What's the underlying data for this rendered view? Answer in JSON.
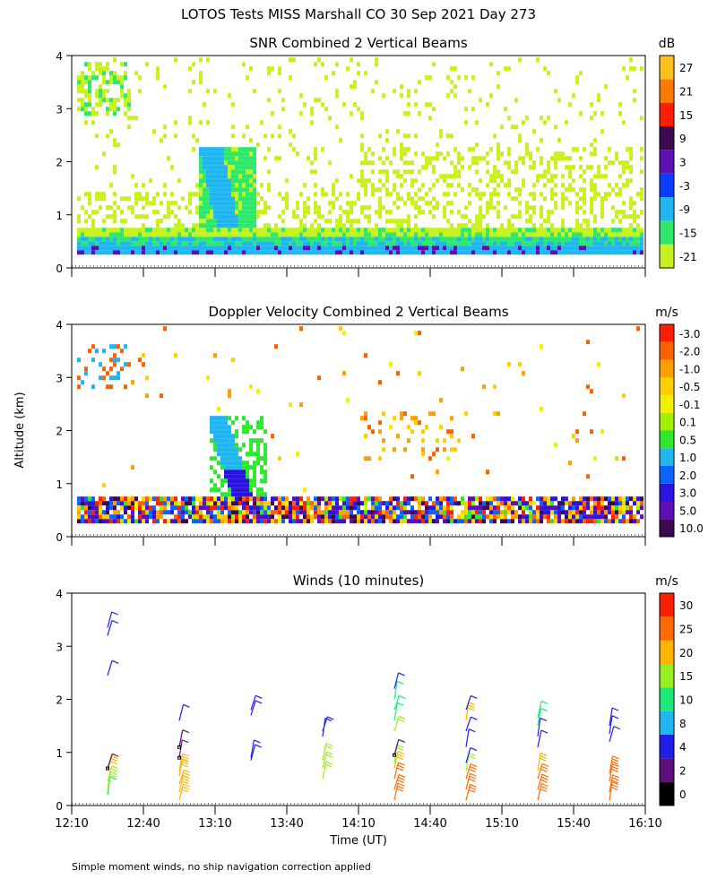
{
  "page": {
    "title": "LOTOS Tests MISS Marshall CO  30 Sep 2021 Day 273",
    "ylabel": "Altitude (km)",
    "xlabel": "Time (UT)",
    "footnote": "Simple moment winds, no ship navigation correction applied"
  },
  "chart_data": [
    {
      "type": "heatmap",
      "title": "SNR Combined 2 Vertical Beams",
      "ylim": [
        0,
        4
      ],
      "yticks": [
        "0",
        "1",
        "2",
        "3",
        "4"
      ],
      "colorbar": {
        "unit": "dB",
        "labels": [
          "-21",
          "-15",
          "-9",
          "-3",
          "3",
          "9",
          "15",
          "21",
          "27"
        ],
        "colors": [
          "#c8f21e",
          "#2ee86c",
          "#1fb6f2",
          "#0a3cff",
          "#5c0fb4",
          "#3c0a50",
          "#ff1e00",
          "#ff7a00",
          "#ffc01e"
        ]
      }
    },
    {
      "type": "heatmap",
      "title": "Doppler Velocity Combined 2 Vertical Beams",
      "ylim": [
        0,
        4
      ],
      "yticks": [
        "0",
        "1",
        "2",
        "3",
        "4"
      ],
      "colorbar": {
        "unit": "m/s",
        "labels": [
          "10.0",
          "5.0",
          "3.0",
          "2.0",
          "1.0",
          "0.5",
          "0.1",
          "-0.1",
          "-0.5",
          "-1.0",
          "-2.0",
          "-3.0"
        ],
        "colors": [
          "#3c0a50",
          "#5c0fb4",
          "#2a14e0",
          "#0a64ff",
          "#1fb6f2",
          "#2ee82e",
          "#a0f000",
          "#f0f000",
          "#ffd000",
          "#ffa000",
          "#ff6000",
          "#ff1e00"
        ]
      }
    },
    {
      "type": "scatter",
      "title": "Winds (10 minutes)",
      "ylim": [
        0,
        4
      ],
      "yticks": [
        "0",
        "1",
        "2",
        "3",
        "4"
      ],
      "xticks": [
        "12:10",
        "12:40",
        "13:10",
        "13:40",
        "14:10",
        "14:40",
        "15:10",
        "15:40",
        "16:10"
      ],
      "colorbar": {
        "unit": "m/s",
        "labels": [
          "0",
          "2",
          "4",
          "8",
          "10",
          "15",
          "20",
          "25",
          "30"
        ],
        "colors": [
          "#000000",
          "#5c0f78",
          "#1e1ee6",
          "#1fb6f2",
          "#1ee878",
          "#96f01e",
          "#ffb400",
          "#ff6a00",
          "#ff1e00"
        ]
      },
      "profiles": [
        {
          "time": "12:25",
          "barbs": [
            [
              0.2,
              10
            ],
            [
              0.3,
              15
            ],
            [
              0.45,
              15
            ],
            [
              0.65,
              20
            ],
            [
              0.7,
              2
            ],
            [
              2.45,
              4
            ],
            [
              3.2,
              4
            ],
            [
              3.35,
              4
            ]
          ]
        },
        {
          "time": "12:55",
          "barbs": [
            [
              0.1,
              20
            ],
            [
              0.25,
              20
            ],
            [
              0.4,
              20
            ],
            [
              0.55,
              20
            ],
            [
              0.65,
              20
            ],
            [
              0.9,
              2
            ],
            [
              1.1,
              2
            ],
            [
              1.6,
              4
            ]
          ]
        },
        {
          "time": "13:25",
          "barbs": [
            [
              0.85,
              4
            ],
            [
              0.9,
              4
            ],
            [
              1.7,
              4
            ],
            [
              1.8,
              4
            ]
          ]
        },
        {
          "time": "13:55",
          "barbs": [
            [
              0.5,
              15
            ],
            [
              0.7,
              15
            ],
            [
              0.85,
              15
            ],
            [
              1.3,
              4
            ],
            [
              1.4,
              4
            ]
          ]
        },
        {
          "time": "14:25",
          "barbs": [
            [
              0.1,
              25
            ],
            [
              0.3,
              25
            ],
            [
              0.5,
              25
            ],
            [
              0.7,
              20
            ],
            [
              0.8,
              15
            ],
            [
              0.95,
              2
            ],
            [
              1.4,
              15
            ],
            [
              1.6,
              10
            ],
            [
              1.8,
              10
            ],
            [
              2.0,
              10
            ],
            [
              2.2,
              4
            ]
          ]
        },
        {
          "time": "14:55",
          "barbs": [
            [
              0.1,
              25
            ],
            [
              0.3,
              25
            ],
            [
              0.5,
              25
            ],
            [
              0.65,
              15
            ],
            [
              0.8,
              4
            ],
            [
              1.1,
              4
            ],
            [
              1.4,
              4
            ],
            [
              1.6,
              20
            ],
            [
              1.8,
              4
            ]
          ]
        },
        {
          "time": "15:25",
          "barbs": [
            [
              0.1,
              25
            ],
            [
              0.3,
              25
            ],
            [
              0.5,
              25
            ],
            [
              0.65,
              20
            ],
            [
              1.1,
              4
            ],
            [
              1.3,
              4
            ],
            [
              1.5,
              10
            ],
            [
              1.65,
              10
            ]
          ]
        },
        {
          "time": "15:55",
          "barbs": [
            [
              0.1,
              25
            ],
            [
              0.25,
              25
            ],
            [
              0.45,
              25
            ],
            [
              0.6,
              25
            ],
            [
              1.2,
              4
            ],
            [
              1.35,
              4
            ],
            [
              1.5,
              4
            ]
          ]
        }
      ]
    }
  ]
}
